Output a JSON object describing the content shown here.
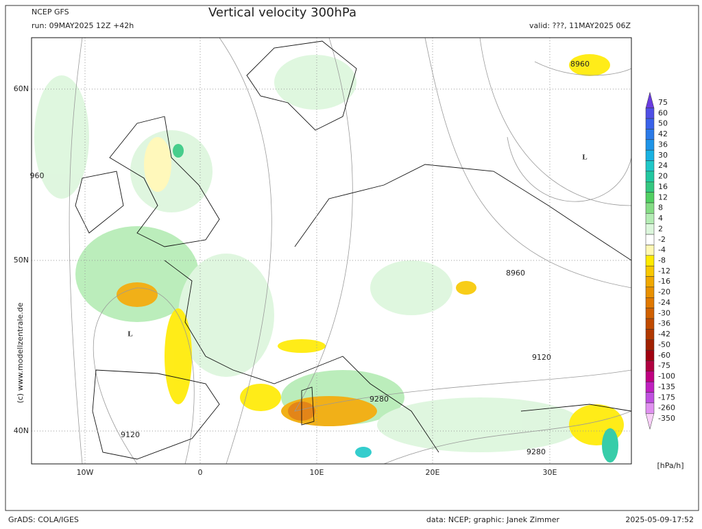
{
  "header": {
    "model": "NCEP GFS",
    "run": "run: 09MAY2025 12Z +42h",
    "title": "Vertical velocity 300hPa",
    "valid": "valid: ???, 11MAY2025 06Z"
  },
  "map": {
    "lat_labels": [
      "60N",
      "50N",
      "40N"
    ],
    "lon_labels": [
      "10W",
      "0",
      "10E",
      "20E",
      "30E"
    ],
    "contour_labels": [
      "8960",
      "960",
      "8960",
      "9120",
      "9280",
      "9120",
      "9280"
    ],
    "lows": [
      "L",
      "L"
    ]
  },
  "legend": {
    "labels": [
      "75",
      "60",
      "50",
      "42",
      "36",
      "30",
      "24",
      "20",
      "16",
      "12",
      "8",
      "4",
      "2",
      "-2",
      "-4",
      "-8",
      "-12",
      "-16",
      "-20",
      "-24",
      "-30",
      "-36",
      "-42",
      "-50",
      "-60",
      "-75",
      "-100",
      "-135",
      "-175",
      "-260",
      "-350"
    ],
    "colors": [
      "#6a3ce0",
      "#4f4fe6",
      "#3a62ea",
      "#2b7ae8",
      "#1e94e8",
      "#18b2e2",
      "#1fc8c8",
      "#22c8a0",
      "#34c880",
      "#52d062",
      "#84dc84",
      "#b4ecb4",
      "#dcf6dc",
      "#ffffff",
      "#fff8b4",
      "#ffea00",
      "#f8c800",
      "#f0a800",
      "#e89000",
      "#e07800",
      "#d06000",
      "#c04a00",
      "#b03800",
      "#a02000",
      "#a00010",
      "#b00040",
      "#c00080",
      "#c020c0",
      "#c050e0",
      "#e090f0",
      "#f8d0f8"
    ],
    "unit": "[hPa/h]"
  },
  "side": "(c) www.modellzentrale.de",
  "footer": {
    "left": "GrADS: COLA/IGES",
    "center": "data: NCEP; graphic: Janek Zimmer",
    "right": "2025-05-09-17:52"
  }
}
